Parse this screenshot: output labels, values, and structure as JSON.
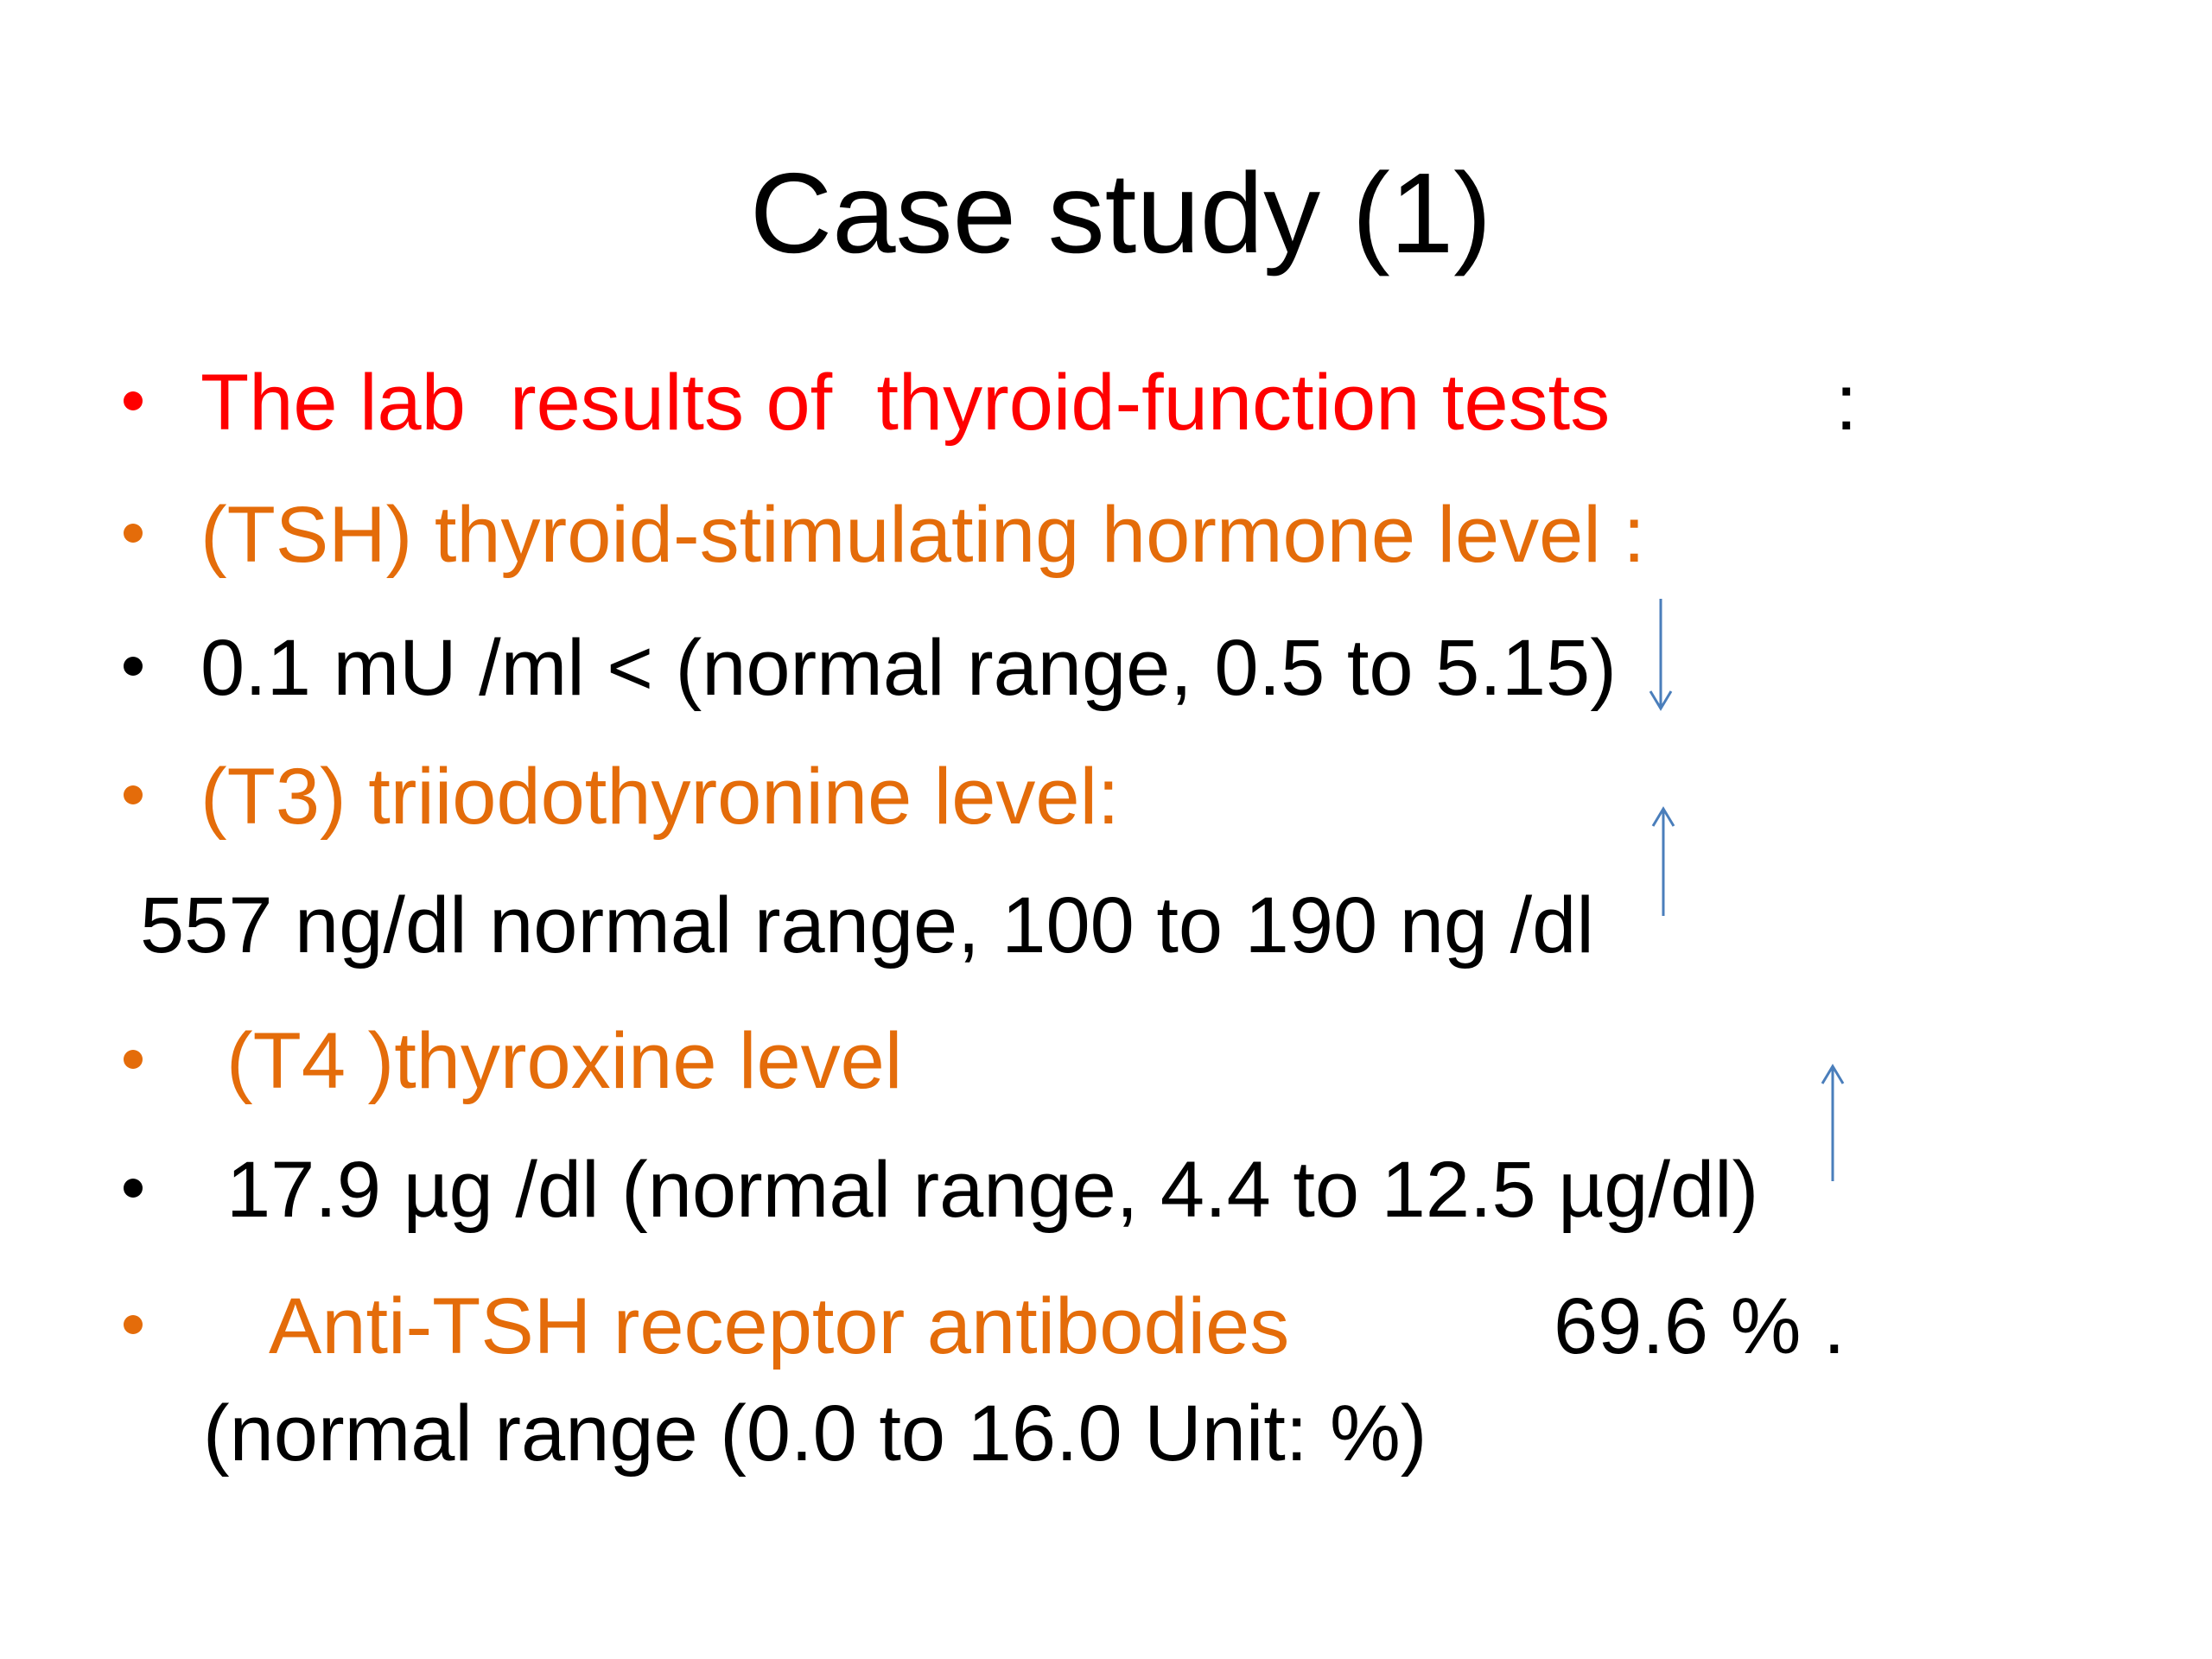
{
  "title": "Case study (1)",
  "lines": [
    [
      "The lab  results of  thyroid-function tests",
      ":"
    ],
    [
      "(TSH) thyroid-stimulating hormone level :"
    ],
    [
      "0.1 mU /ml < (normal range, 0.5 to 5.15)"
    ],
    [
      "(T3) triiodothyronine level:"
    ],
    [
      "557 ng/dl normal range, 100 to 190 ng /dl"
    ],
    [
      "(T4 )thyroxine level"
    ],
    [
      "17.9 µg /dl (normal range, 4.4 to 12.5 µg/dl)"
    ],
    [
      "Anti-TSH receptor antibodies",
      "69.6 % ."
    ],
    [
      "(normal range (0.0 to 16.0 Unit: %)"
    ]
  ]
}
